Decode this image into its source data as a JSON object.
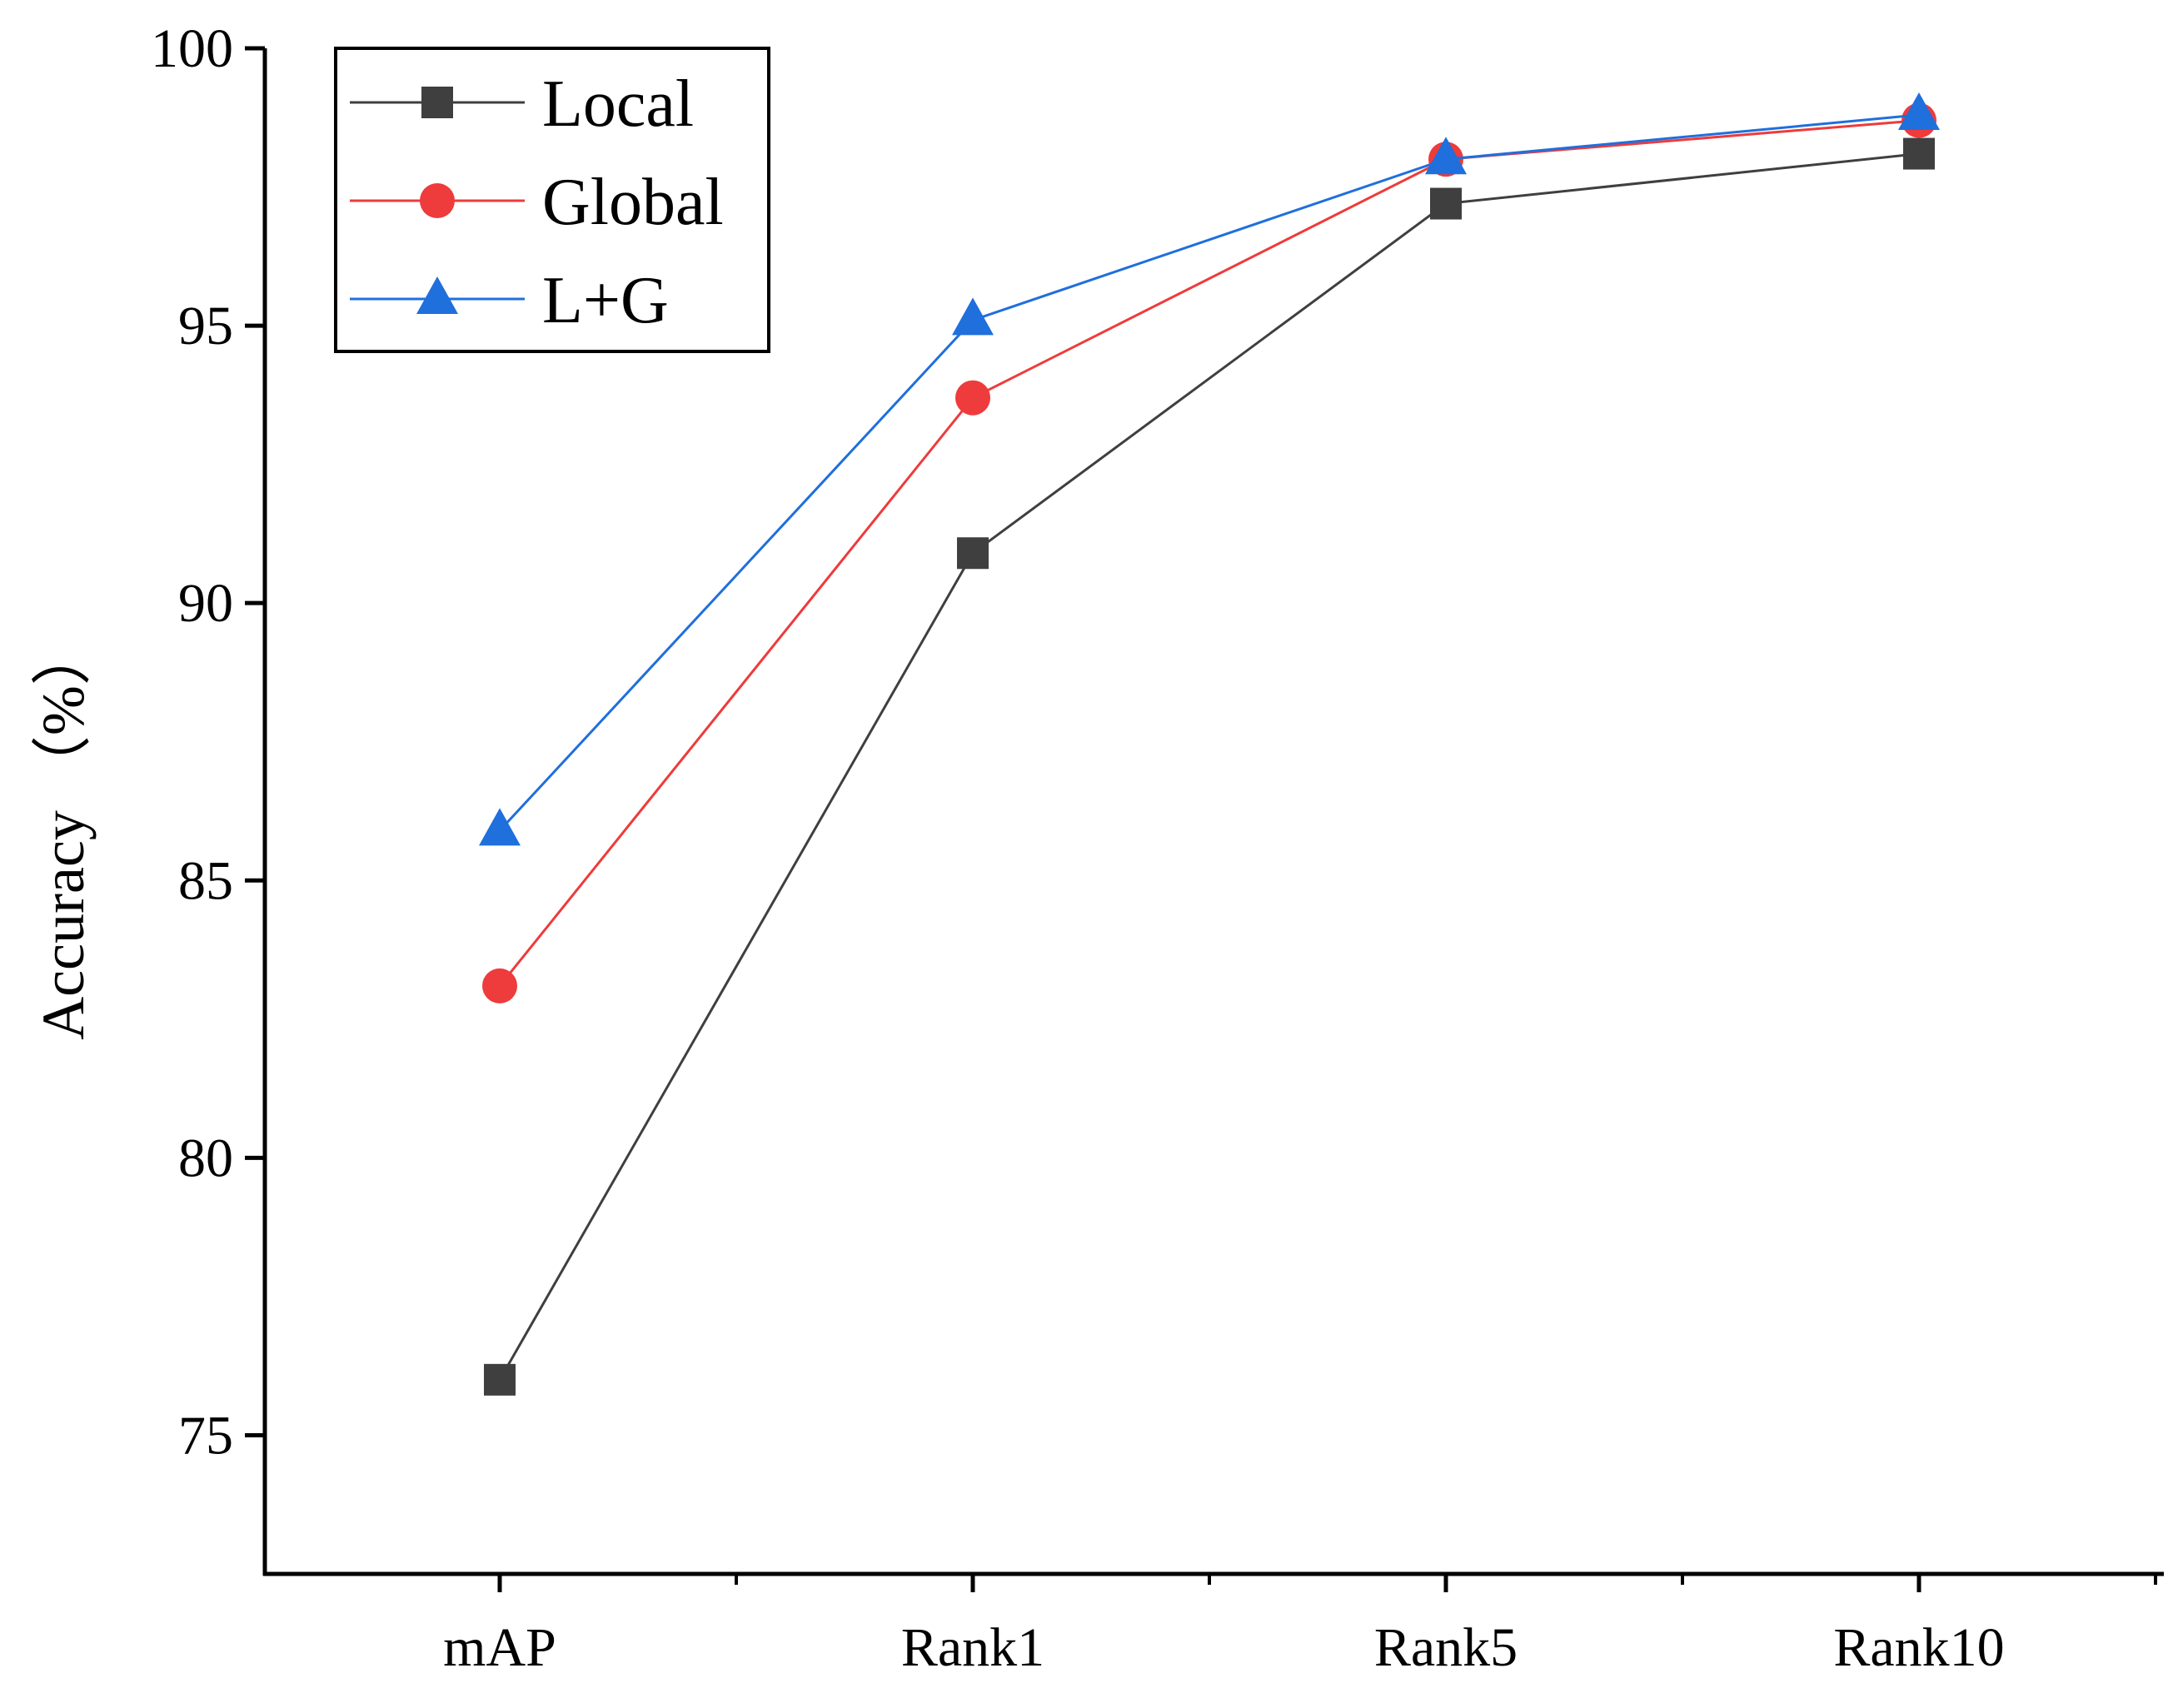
{
  "chart_data": {
    "type": "line",
    "title": "",
    "xlabel": "",
    "ylabel": "Accuracy （%）",
    "categories": [
      "mAP",
      "Rank1",
      "Rank5",
      "Rank10"
    ],
    "ylim": [
      72.5,
      100
    ],
    "yticks": [
      75,
      80,
      85,
      90,
      95,
      100
    ],
    "grid": false,
    "legend_position": "top-left",
    "series": [
      {
        "name": "Local",
        "color": "#3f3f3f",
        "marker": "square",
        "values": [
          76.0,
          90.9,
          97.2,
          98.1
        ]
      },
      {
        "name": "Global",
        "color": "#ee3b3b",
        "marker": "circle",
        "values": [
          83.1,
          93.7,
          98.0,
          98.7
        ]
      },
      {
        "name": "L+G",
        "color": "#1f6fdc",
        "marker": "triangle",
        "values": [
          85.9,
          95.1,
          98.0,
          98.8
        ]
      }
    ]
  }
}
